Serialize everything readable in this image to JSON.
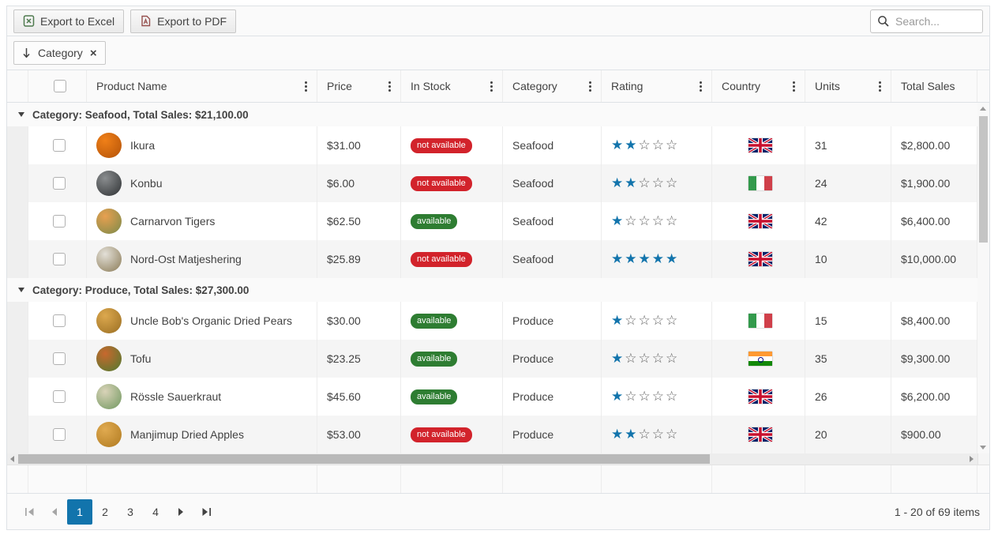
{
  "toolbar": {
    "export_excel_label": "Export to Excel",
    "export_pdf_label": "Export to PDF",
    "search_placeholder": "Search..."
  },
  "group_panel": {
    "chip_label": "Category"
  },
  "icons": {
    "chip_remove": "×",
    "star_filled_char": "★",
    "star_empty_char": "☆"
  },
  "columns": [
    {
      "label": "Product Name",
      "menu": true
    },
    {
      "label": "Price",
      "menu": true
    },
    {
      "label": "In Stock",
      "menu": true
    },
    {
      "label": "Category",
      "menu": true
    },
    {
      "label": "Rating",
      "menu": true
    },
    {
      "label": "Country",
      "menu": true
    },
    {
      "label": "Units",
      "menu": true
    },
    {
      "label": "Total Sales",
      "menu": false
    }
  ],
  "groups": [
    {
      "header": "Category: Seafood, Total Sales: $21,100.00",
      "rows": [
        {
          "name": "Ikura",
          "price": "$31.00",
          "stock": "not available",
          "stock_state": "out",
          "category": "Seafood",
          "rating": 2,
          "country": "gb",
          "units": "31",
          "total": "$2,800.00",
          "avatar": [
            "#f08018",
            "#b35208"
          ]
        },
        {
          "name": "Konbu",
          "price": "$6.00",
          "stock": "not available",
          "stock_state": "out",
          "category": "Seafood",
          "rating": 2,
          "country": "it",
          "units": "24",
          "total": "$1,900.00",
          "avatar": [
            "#8a8d8f",
            "#2e3133"
          ]
        },
        {
          "name": "Carnarvon Tigers",
          "price": "$62.50",
          "stock": "available",
          "stock_state": "in",
          "category": "Seafood",
          "rating": 1,
          "country": "gb",
          "units": "42",
          "total": "$6,400.00",
          "avatar": [
            "#e8a050",
            "#7a8a4a"
          ]
        },
        {
          "name": "Nord-Ost Matjeshering",
          "price": "$25.89",
          "stock": "not available",
          "stock_state": "out",
          "category": "Seafood",
          "rating": 5,
          "country": "gb",
          "units": "10",
          "total": "$10,000.00",
          "avatar": [
            "#e3e0d8",
            "#8a7a55"
          ]
        }
      ]
    },
    {
      "header": "Category: Produce, Total Sales: $27,300.00",
      "rows": [
        {
          "name": "Uncle Bob's Organic Dried Pears",
          "price": "$30.00",
          "stock": "available",
          "stock_state": "in",
          "category": "Produce",
          "rating": 1,
          "country": "it",
          "units": "15",
          "total": "$8,400.00",
          "avatar": [
            "#dca84e",
            "#9a6e22"
          ]
        },
        {
          "name": "Tofu",
          "price": "$23.25",
          "stock": "available",
          "stock_state": "in",
          "category": "Produce",
          "rating": 1,
          "country": "in",
          "units": "35",
          "total": "$9,300.00",
          "avatar": [
            "#c8682e",
            "#4e7a30"
          ]
        },
        {
          "name": "Rössle Sauerkraut",
          "price": "$45.60",
          "stock": "available",
          "stock_state": "in",
          "category": "Produce",
          "rating": 1,
          "country": "gb",
          "units": "26",
          "total": "$6,200.00",
          "avatar": [
            "#d9d3b8",
            "#70975f"
          ]
        },
        {
          "name": "Manjimup Dried Apples",
          "price": "$53.00",
          "stock": "not available",
          "stock_state": "out",
          "category": "Produce",
          "rating": 2,
          "country": "gb",
          "units": "20",
          "total": "$900.00",
          "avatar": [
            "#e0aa50",
            "#b07a20"
          ]
        }
      ]
    }
  ],
  "pager": {
    "pages": [
      "1",
      "2",
      "3",
      "4"
    ],
    "current_page": "1",
    "info": "1 - 20 of 69 items"
  },
  "colors": {
    "accent": "#1274ac",
    "star_filled": "#1274ac",
    "star_empty": "#5e5e5e",
    "badge_available": "#2e7d32",
    "badge_not_available": "#d2232b",
    "flag_it_green": "#339a4c",
    "flag_it_red": "#d0404a",
    "flag_in_saffron": "#ff9933",
    "flag_in_green": "#128807"
  }
}
